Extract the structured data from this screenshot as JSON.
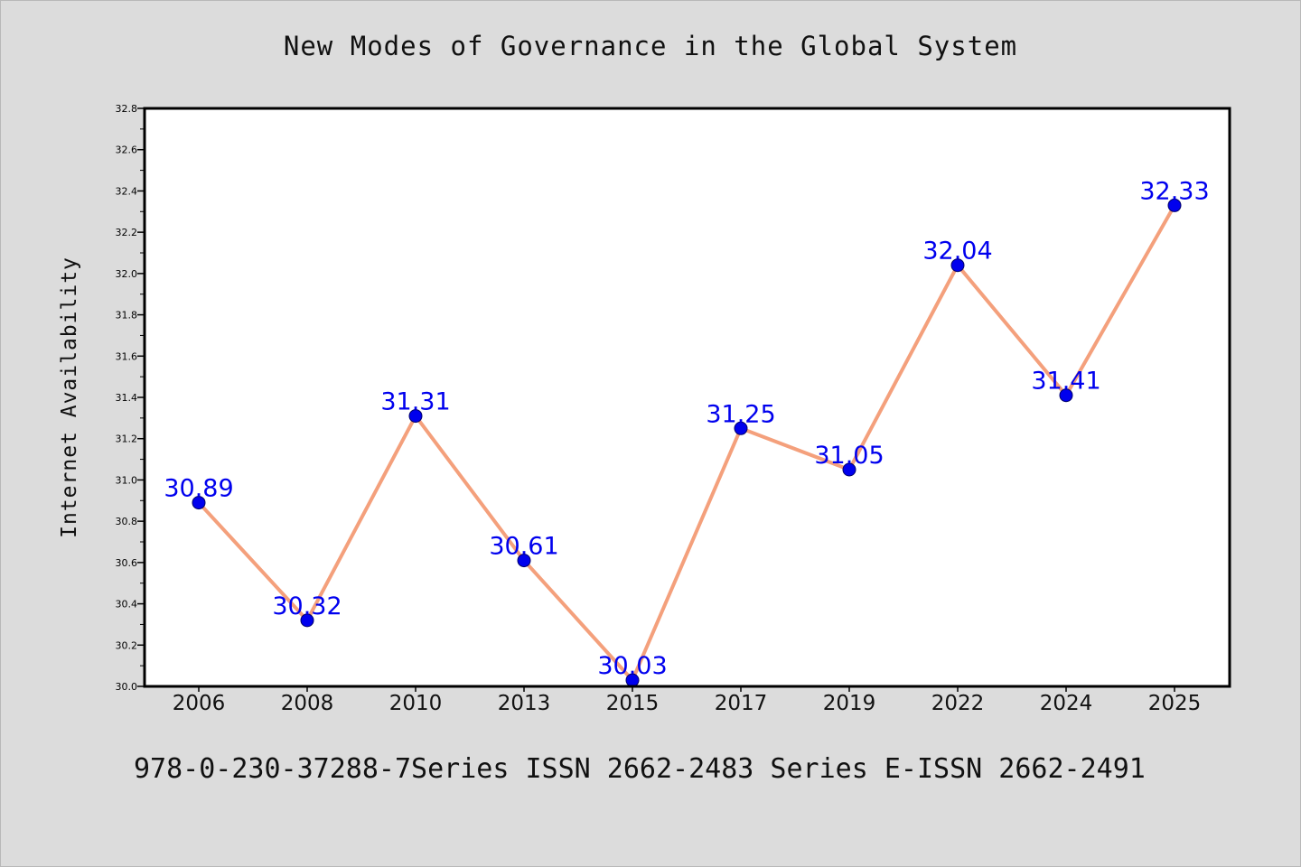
{
  "chart_data": {
    "type": "line",
    "title": "New Modes of Governance in the Global System",
    "xlabel": "",
    "ylabel": "Internet Availability",
    "footnote": "978-0-230-37288-7Series ISSN 2662-2483 Series E-ISSN 2662-2491",
    "categories": [
      "2006",
      "2008",
      "2010",
      "2013",
      "2015",
      "2017",
      "2019",
      "2022",
      "2024",
      "2025"
    ],
    "series": [
      {
        "values": [
          30.89,
          30.32,
          31.31,
          30.61,
          30.03,
          31.25,
          31.05,
          32.04,
          31.41,
          32.33
        ]
      }
    ],
    "data_labels": [
      "30.89",
      "30.32",
      "31.31",
      "30.61",
      "30.03",
      "31.25",
      "31.05",
      "32.04",
      "31.41",
      "32.33"
    ],
    "ylim": [
      30.0,
      32.8
    ],
    "y_ticks": [
      "30.0",
      "30.2",
      "30.4",
      "30.6",
      "30.8",
      "31.0",
      "31.2",
      "31.4",
      "31.6",
      "31.8",
      "32.0",
      "32.2",
      "32.4",
      "32.6",
      "32.8"
    ],
    "grid": false,
    "legend": "none",
    "colors": {
      "line": "#f4a07c",
      "marker": "#0000ee",
      "label": "#0000ee",
      "background": "#dcdcdc",
      "plot_area": "#ffffff"
    }
  }
}
